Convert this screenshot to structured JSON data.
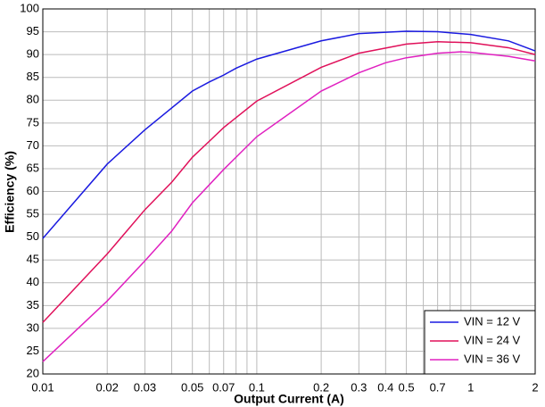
{
  "chart_data": {
    "type": "line",
    "xlabel": "Output Current (A)",
    "ylabel": "Efficiency (%)",
    "xscale": "log",
    "xlim": [
      0.01,
      2
    ],
    "ylim": [
      20,
      100
    ],
    "xticks": [
      0.01,
      0.02,
      0.03,
      0.05,
      0.07,
      0.1,
      0.2,
      0.3,
      0.4,
      0.5,
      0.7,
      1,
      2
    ],
    "xminor": [
      0.04,
      0.06,
      0.08,
      0.09,
      0.6,
      0.8,
      0.9
    ],
    "yticks": [
      20,
      25,
      30,
      35,
      40,
      45,
      50,
      55,
      60,
      65,
      70,
      75,
      80,
      85,
      90,
      95,
      100
    ],
    "grid": true,
    "legend": "lower right",
    "series": [
      {
        "name": "VIN = 12 V",
        "color": "#1a1ae0",
        "x": [
          0.01,
          0.02,
          0.03,
          0.05,
          0.06,
          0.07,
          0.08,
          0.1,
          0.2,
          0.3,
          0.5,
          0.7,
          1,
          1.5,
          2
        ],
        "values": [
          49.7,
          66,
          73.5,
          82,
          84,
          85.5,
          87,
          89,
          93,
          94.6,
          95.1,
          95,
          94.4,
          93,
          90.8
        ]
      },
      {
        "name": "VIN = 24 V",
        "color": "#e0105a",
        "x": [
          0.01,
          0.02,
          0.03,
          0.04,
          0.05,
          0.06,
          0.07,
          0.1,
          0.2,
          0.3,
          0.5,
          0.7,
          1,
          1.5,
          2
        ],
        "values": [
          31.3,
          46.3,
          56,
          62,
          67.5,
          71,
          74,
          79.8,
          87.2,
          90.3,
          92.3,
          92.8,
          92.6,
          91.5,
          90
        ]
      },
      {
        "name": "VIN = 36 V",
        "color": "#e020c0",
        "x": [
          0.01,
          0.02,
          0.03,
          0.04,
          0.05,
          0.07,
          0.1,
          0.2,
          0.3,
          0.4,
          0.5,
          0.7,
          0.9,
          1,
          1.5,
          2
        ],
        "values": [
          22.7,
          36,
          44.8,
          51.3,
          57.5,
          64.8,
          72,
          82,
          86,
          88.2,
          89.3,
          90.3,
          90.6,
          90.5,
          89.6,
          88.6
        ]
      }
    ]
  }
}
